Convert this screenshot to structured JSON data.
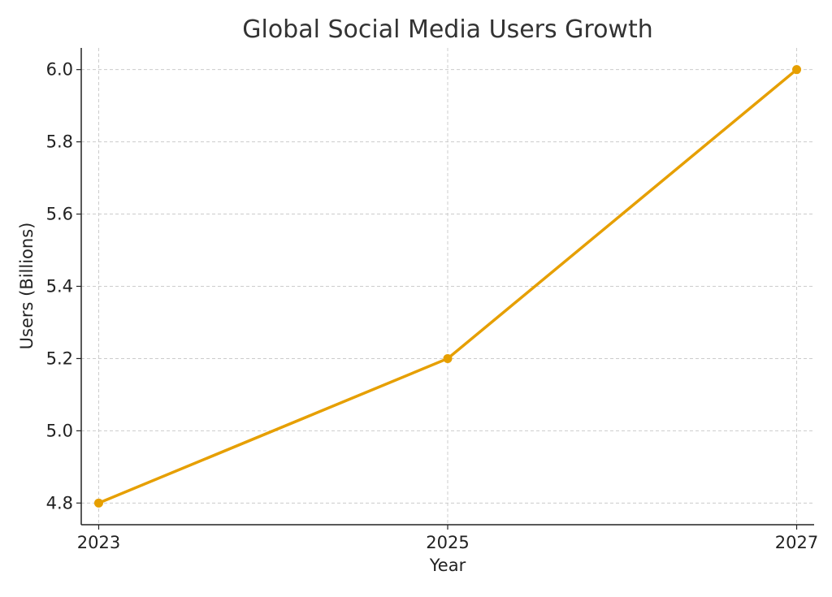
{
  "chart_data": {
    "type": "line",
    "title": "Global Social Media Users Growth",
    "xlabel": "Year",
    "ylabel": "Users (Billions)",
    "x": [
      2023,
      2025,
      2027
    ],
    "x_ticks": [
      "2023",
      "2025",
      "2027"
    ],
    "y_ticks": [
      "4.8",
      "5.0",
      "5.2",
      "5.4",
      "5.6",
      "5.8",
      "6.0"
    ],
    "xlim": [
      2022.9,
      2027.1
    ],
    "ylim": [
      4.74,
      6.06
    ],
    "series": [
      {
        "values": [
          4.8,
          5.2,
          6.0
        ],
        "color": "#e69f00",
        "marker": "circle"
      }
    ],
    "grid": true,
    "grid_style": "dashed",
    "legend": "none"
  }
}
